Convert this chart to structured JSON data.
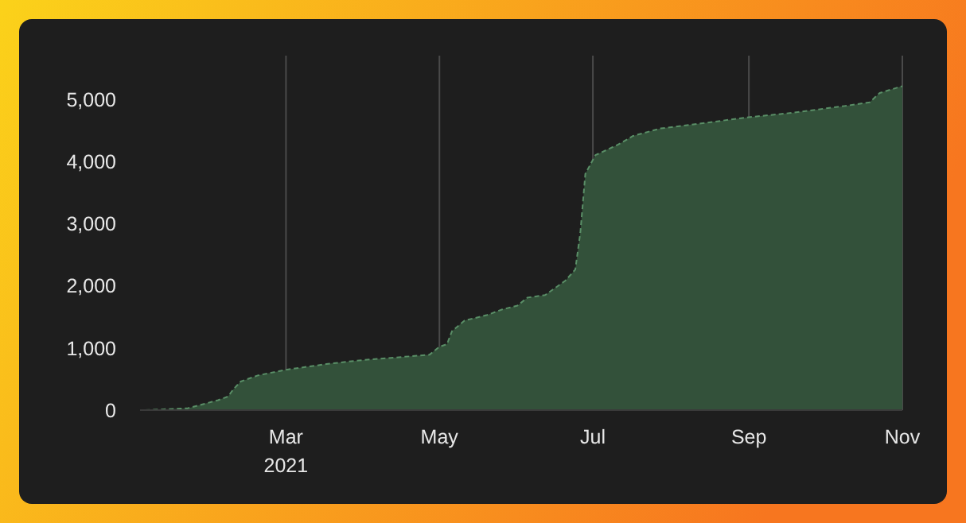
{
  "chart_data": {
    "type": "area",
    "x": [
      "2021-01-04",
      "2021-01-21",
      "2021-02-02",
      "2021-02-06",
      "2021-02-08",
      "2021-02-11",
      "2021-02-18",
      "2021-03-01",
      "2021-03-17",
      "2021-03-30",
      "2021-04-27",
      "2021-05-01",
      "2021-05-04",
      "2021-05-06",
      "2021-05-11",
      "2021-05-20",
      "2021-05-26",
      "2021-06-01",
      "2021-06-05",
      "2021-06-12",
      "2021-06-20",
      "2021-06-24",
      "2021-06-26",
      "2021-06-28",
      "2021-07-02",
      "2021-07-11",
      "2021-07-17",
      "2021-07-28",
      "2021-08-13",
      "2021-09-01",
      "2021-09-18",
      "2021-10-09",
      "2021-10-19",
      "2021-10-23",
      "2021-11-01"
    ],
    "series": [
      {
        "color": "#33513a",
        "values": [
          0,
          30,
          160,
          220,
          330,
          460,
          560,
          650,
          740,
          800,
          890,
          1020,
          1060,
          1270,
          1440,
          1530,
          1620,
          1680,
          1810,
          1850,
          2080,
          2260,
          2850,
          3800,
          4100,
          4270,
          4410,
          4530,
          4610,
          4710,
          4780,
          4890,
          4950,
          5100,
          5210
        ]
      }
    ],
    "xlim": [
      "2021-01-02",
      "2021-11-01"
    ],
    "xticks": [
      {
        "value": "2021-03-01",
        "label": "Mar\n2021"
      },
      {
        "value": "2021-05-01",
        "label": "May"
      },
      {
        "value": "2021-07-01",
        "label": "Jul"
      },
      {
        "value": "2021-09-01",
        "label": "Sep"
      },
      {
        "value": "2021-11-01",
        "label": "Nov"
      }
    ],
    "ylim": [
      0,
      5700
    ],
    "yticks": [
      {
        "value": 0,
        "label": "0"
      },
      {
        "value": 1000,
        "label": "1,000"
      },
      {
        "value": 2000,
        "label": "2,000"
      },
      {
        "value": 3000,
        "label": "3,000"
      },
      {
        "value": 4000,
        "label": "4,000"
      },
      {
        "value": 5000,
        "label": "5,000"
      }
    ],
    "grid": "x",
    "line_style": "dashed"
  }
}
